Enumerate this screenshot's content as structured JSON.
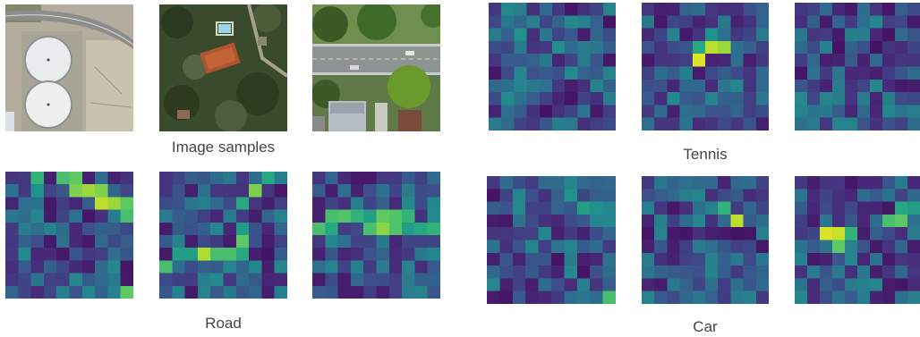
{
  "captions": {
    "samples": "Image samples",
    "road": "Road",
    "tennis": "Tennis",
    "car": "Car"
  },
  "colormap": {
    "name": "viridis",
    "stops": [
      "#440154",
      "#472d7b",
      "#3b528b",
      "#2c728e",
      "#21918c",
      "#28ae80",
      "#5ec962",
      "#addc30",
      "#fde725"
    ]
  },
  "photos": [
    {
      "name": "image-sample-storage-tanks",
      "subject": "two white circular storage tanks beside a curved road"
    },
    {
      "name": "image-sample-tennis-court",
      "subject": "forested area with a tennis court and swimming pool"
    },
    {
      "name": "image-sample-street-cars",
      "subject": "residential street with trees, houses and cars"
    }
  ],
  "heatmaps": {
    "road": [
      {
        "name": "heatmap-road-1",
        "seed": 11,
        "features": [
          {
            "r": 0,
            "c": 2,
            "v": 0.65
          },
          {
            "r": 0,
            "c": 4,
            "v": 0.7
          },
          {
            "r": 0,
            "c": 5,
            "v": 0.75
          },
          {
            "r": 1,
            "c": 5,
            "v": 0.8
          },
          {
            "r": 1,
            "c": 6,
            "v": 0.85
          },
          {
            "r": 1,
            "c": 7,
            "v": 0.8
          },
          {
            "r": 2,
            "c": 7,
            "v": 0.9
          },
          {
            "r": 2,
            "c": 8,
            "v": 0.85
          },
          {
            "r": 2,
            "c": 9,
            "v": 0.75
          },
          {
            "r": 3,
            "c": 9,
            "v": 0.7
          },
          {
            "r": 3,
            "c": 10,
            "v": 0.8
          },
          {
            "r": 1,
            "c": 2,
            "v": 0.5
          },
          {
            "r": 9,
            "c": 9,
            "v": 0.75
          }
        ]
      },
      {
        "name": "heatmap-road-2",
        "seed": 23,
        "features": [
          {
            "r": 0,
            "c": 8,
            "v": 0.6
          },
          {
            "r": 1,
            "c": 7,
            "v": 0.8
          },
          {
            "r": 2,
            "c": 6,
            "v": 0.6
          },
          {
            "r": 4,
            "c": 6,
            "v": 0.55
          },
          {
            "r": 5,
            "c": 6,
            "v": 0.75
          },
          {
            "r": 6,
            "c": 4,
            "v": 0.7
          },
          {
            "r": 6,
            "c": 3,
            "v": 0.88
          },
          {
            "r": 6,
            "c": 5,
            "v": 0.7
          },
          {
            "r": 6,
            "c": 6,
            "v": 0.6
          },
          {
            "r": 7,
            "c": 0,
            "v": 0.7
          },
          {
            "r": 6,
            "c": 1,
            "v": 0.55
          },
          {
            "r": 6,
            "c": 2,
            "v": 0.55
          }
        ]
      },
      {
        "name": "heatmap-road-3",
        "seed": 37,
        "features": [
          {
            "r": 3,
            "c": 1,
            "v": 0.7
          },
          {
            "r": 3,
            "c": 2,
            "v": 0.72
          },
          {
            "r": 3,
            "c": 3,
            "v": 0.65
          },
          {
            "r": 4,
            "c": 0,
            "v": 0.7
          },
          {
            "r": 4,
            "c": 1,
            "v": 0.6
          },
          {
            "r": 3,
            "c": 4,
            "v": 0.55
          },
          {
            "r": 3,
            "c": 5,
            "v": 0.75
          },
          {
            "r": 3,
            "c": 6,
            "v": 0.72
          },
          {
            "r": 4,
            "c": 4,
            "v": 0.7
          },
          {
            "r": 4,
            "c": 5,
            "v": 0.82
          },
          {
            "r": 4,
            "c": 6,
            "v": 0.72
          },
          {
            "r": 3,
            "c": 7,
            "v": 0.65
          },
          {
            "r": 4,
            "c": 7,
            "v": 0.55
          },
          {
            "r": 4,
            "c": 8,
            "v": 0.6
          },
          {
            "r": 4,
            "c": 9,
            "v": 0.65
          }
        ]
      }
    ],
    "tennis": [
      {
        "name": "heatmap-tennis-1",
        "seed": 41,
        "features": [
          {
            "r": 2,
            "c": 2,
            "v": 0.5
          },
          {
            "r": 3,
            "c": 5,
            "v": 0.48
          },
          {
            "r": 6,
            "c": 2,
            "v": 0.45
          }
        ]
      },
      {
        "name": "heatmap-tennis-2",
        "seed": 53,
        "features": [
          {
            "r": 3,
            "c": 5,
            "v": 0.9
          },
          {
            "r": 3,
            "c": 6,
            "v": 0.85
          },
          {
            "r": 4,
            "c": 4,
            "v": 0.95
          },
          {
            "r": 3,
            "c": 4,
            "v": 0.6
          },
          {
            "r": 2,
            "c": 5,
            "v": 0.5
          }
        ]
      },
      {
        "name": "heatmap-tennis-3",
        "seed": 67,
        "features": [
          {
            "r": 7,
            "c": 7,
            "v": 0.42
          }
        ]
      }
    ],
    "car": [
      {
        "name": "heatmap-car-1",
        "seed": 71,
        "features": [
          {
            "r": 1,
            "c": 6,
            "v": 0.5
          },
          {
            "r": 2,
            "c": 7,
            "v": 0.55
          },
          {
            "r": 2,
            "c": 8,
            "v": 0.5
          },
          {
            "r": 3,
            "c": 8,
            "v": 0.45
          },
          {
            "r": 9,
            "c": 9,
            "v": 0.7
          }
        ]
      },
      {
        "name": "heatmap-car-2",
        "seed": 83,
        "features": [
          {
            "r": 2,
            "c": 6,
            "v": 0.65
          },
          {
            "r": 3,
            "c": 7,
            "v": 0.9
          }
        ]
      },
      {
        "name": "heatmap-car-3",
        "seed": 97,
        "features": [
          {
            "r": 4,
            "c": 2,
            "v": 0.95
          },
          {
            "r": 4,
            "c": 3,
            "v": 0.92
          },
          {
            "r": 5,
            "c": 3,
            "v": 0.75
          },
          {
            "r": 4,
            "c": 4,
            "v": 0.65
          },
          {
            "r": 3,
            "c": 7,
            "v": 0.7
          },
          {
            "r": 3,
            "c": 8,
            "v": 0.75
          },
          {
            "r": 2,
            "c": 8,
            "v": 0.6
          },
          {
            "r": 2,
            "c": 9,
            "v": 0.55
          }
        ]
      }
    ]
  }
}
